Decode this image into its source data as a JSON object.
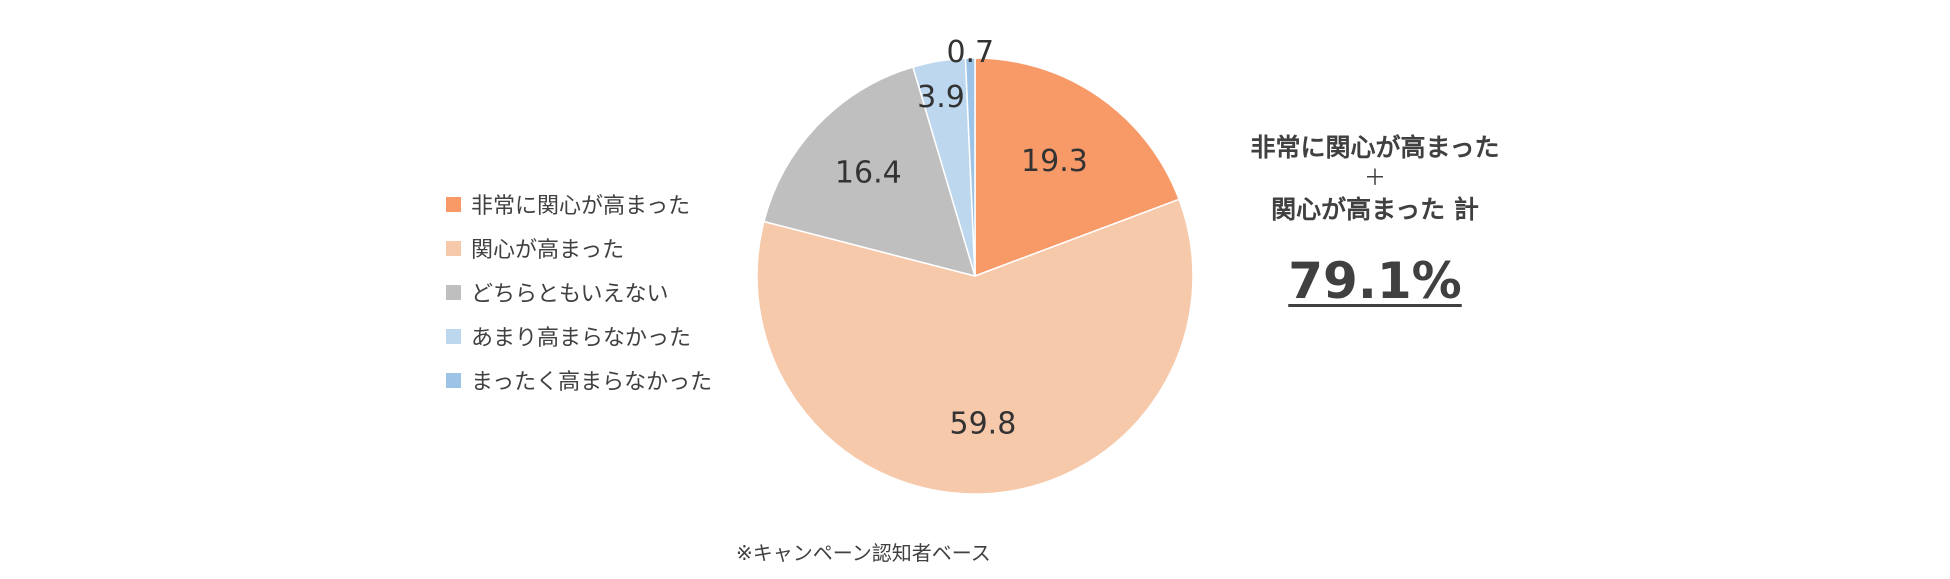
{
  "chart_data": {
    "type": "pie",
    "categories": [
      "非常に関心が高まった",
      "関心が高まった",
      "どちらともいえない",
      "あまり高まらなかった",
      "まったく高まらなかった"
    ],
    "values": [
      19.3,
      59.8,
      16.4,
      3.9,
      0.7
    ],
    "value_labels": [
      "19.3",
      "59.8",
      "16.4",
      "3.9",
      "0.7"
    ],
    "colors": [
      "#F79A68",
      "#F7C9AB",
      "#BFBFBF",
      "#BDD7EE",
      "#9DC3E6"
    ],
    "start_angle_deg": 0,
    "direction": "clockwise",
    "legend_position": "left"
  },
  "summary": {
    "line1": "非常に関心が高まった",
    "plus": "＋",
    "line2": "関心が高まった 計",
    "total": "79.1%"
  },
  "footnote": "※キャンペーン認知者ベース"
}
